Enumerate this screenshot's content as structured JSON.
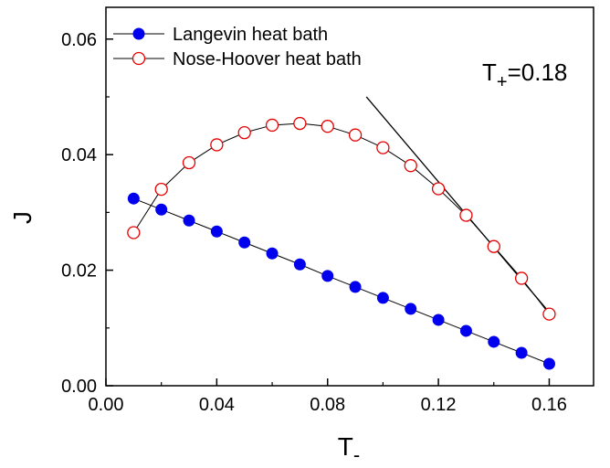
{
  "chart_data": {
    "type": "scatter",
    "xlabel": "T",
    "xlabel_sub": "-",
    "ylabel": "J",
    "xlim": [
      0.0,
      0.176
    ],
    "ylim": [
      0.0,
      0.0655
    ],
    "x_ticks": [
      "0.00",
      "0.04",
      "0.08",
      "0.12",
      "0.16"
    ],
    "x_tick_values": [
      0.0,
      0.04,
      0.08,
      0.12,
      0.16
    ],
    "y_ticks": [
      "0.00",
      "0.02",
      "0.04",
      "0.06"
    ],
    "y_tick_values": [
      0.0,
      0.02,
      0.04,
      0.06
    ],
    "grid": false,
    "legend_position": "top-left",
    "annotation": {
      "text_main": "T",
      "text_sub": "+",
      "text_value": "=0.18"
    },
    "series": [
      {
        "name": "Langevin heat bath",
        "marker": "filled-circle",
        "color": "#0000ee",
        "x": [
          0.01,
          0.02,
          0.03,
          0.04,
          0.05,
          0.06,
          0.07,
          0.08,
          0.09,
          0.1,
          0.11,
          0.12,
          0.13,
          0.14,
          0.15,
          0.16
        ],
        "y": [
          0.0324,
          0.0305,
          0.0286,
          0.0267,
          0.0248,
          0.0229,
          0.021,
          0.019,
          0.0171,
          0.0152,
          0.0133,
          0.0114,
          0.0095,
          0.0076,
          0.0057,
          0.0038
        ]
      },
      {
        "name": "Nose-Hoover heat bath",
        "marker": "open-circle",
        "color": "#e60000",
        "x": [
          0.01,
          0.02,
          0.03,
          0.04,
          0.05,
          0.06,
          0.07,
          0.08,
          0.09,
          0.1,
          0.11,
          0.12,
          0.13,
          0.14,
          0.15,
          0.16
        ],
        "y": [
          0.0265,
          0.034,
          0.0386,
          0.0417,
          0.0438,
          0.0451,
          0.0454,
          0.0449,
          0.0434,
          0.0412,
          0.0381,
          0.0341,
          0.0295,
          0.0241,
          0.0186,
          0.0124
        ]
      }
    ],
    "reference_line": {
      "x": [
        0.094,
        0.16
      ],
      "y": [
        0.05,
        0.0127
      ]
    }
  }
}
